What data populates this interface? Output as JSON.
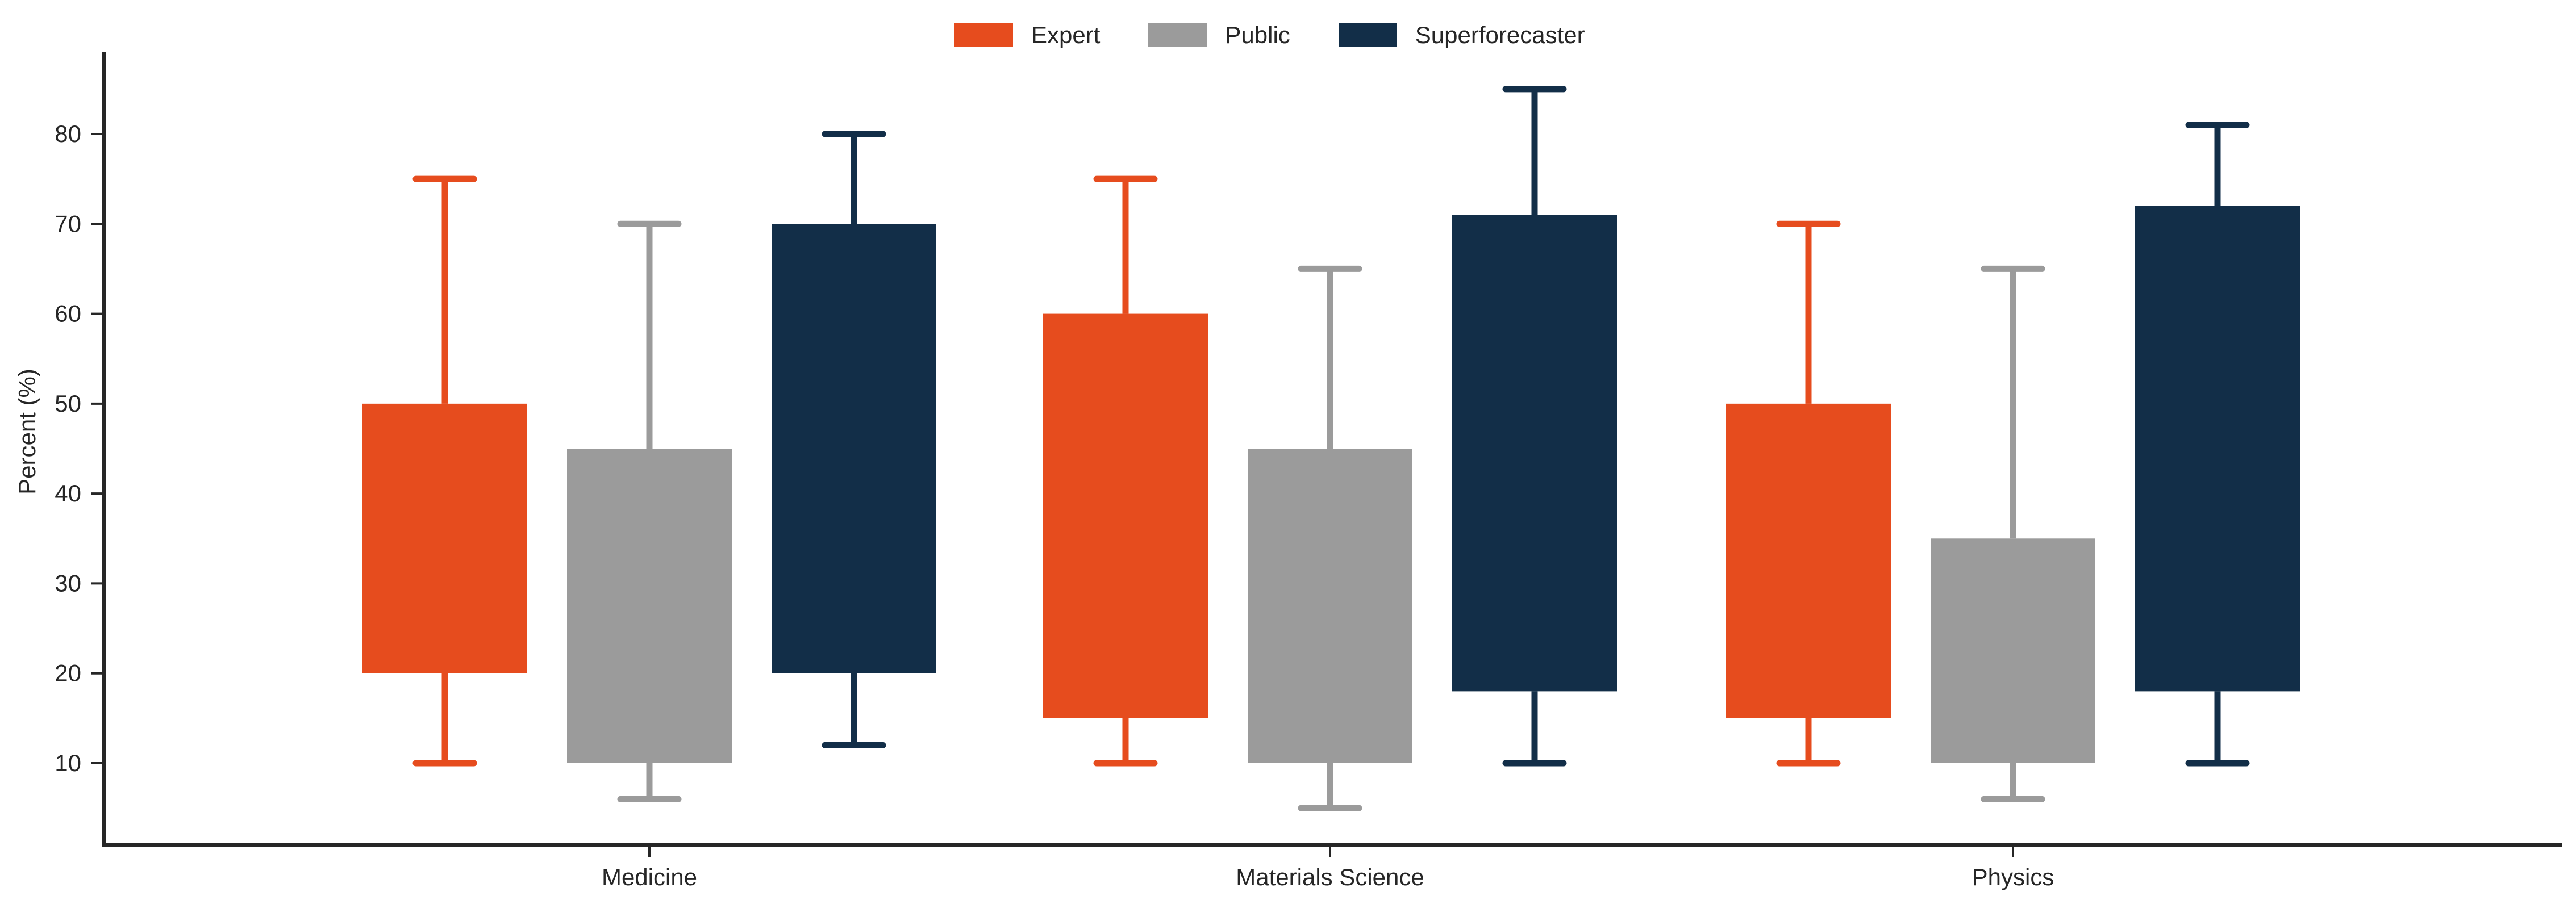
{
  "chart_data": {
    "type": "boxplot",
    "title": "",
    "xlabel": "",
    "ylabel": "Percent (%)",
    "ylim": [
      1,
      89
    ],
    "yticks": [
      10,
      20,
      30,
      40,
      50,
      60,
      70,
      80
    ],
    "categories": [
      "Medicine",
      "Materials Science",
      "Physics"
    ],
    "legend_position": "top-center",
    "grid": false,
    "series": [
      {
        "name": "Expert",
        "color": "#E64C1E",
        "boxes": [
          {
            "whisker_low": 10,
            "q1": 20,
            "q3": 50,
            "whisker_high": 75
          },
          {
            "whisker_low": 10,
            "q1": 15,
            "q3": 60,
            "whisker_high": 75
          },
          {
            "whisker_low": 10,
            "q1": 15,
            "q3": 50,
            "whisker_high": 70
          }
        ]
      },
      {
        "name": "Public",
        "color": "#9B9B9B",
        "boxes": [
          {
            "whisker_low": 6,
            "q1": 10,
            "q3": 45,
            "whisker_high": 70
          },
          {
            "whisker_low": 5,
            "q1": 10,
            "q3": 45,
            "whisker_high": 65
          },
          {
            "whisker_low": 6,
            "q1": 10,
            "q3": 35,
            "whisker_high": 65
          }
        ]
      },
      {
        "name": "Superforecaster",
        "color": "#122E48",
        "boxes": [
          {
            "whisker_low": 12,
            "q1": 20,
            "q3": 70,
            "whisker_high": 80
          },
          {
            "whisker_low": 10,
            "q1": 18,
            "q3": 71,
            "whisker_high": 85
          },
          {
            "whisker_low": 10,
            "q1": 18,
            "q3": 72,
            "whisker_high": 81
          }
        ]
      }
    ]
  },
  "legend": {
    "items": [
      {
        "label": "Expert",
        "color": "#E64C1E"
      },
      {
        "label": "Public",
        "color": "#9B9B9B"
      },
      {
        "label": "Superforecaster",
        "color": "#122E48"
      }
    ]
  },
  "axes": {
    "color": "#262626"
  }
}
